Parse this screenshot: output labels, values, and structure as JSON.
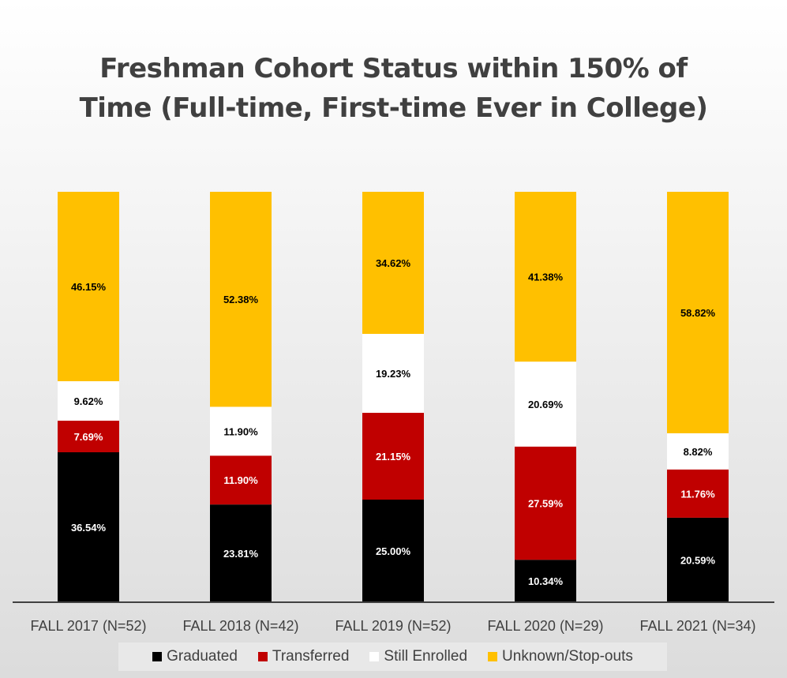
{
  "chart_data": {
    "type": "bar",
    "stacked": true,
    "percent_stacked": true,
    "title": "Freshman Cohort Status within 150% of Time (Full-time, First-time Ever in College)",
    "title_lines": [
      "Freshman Cohort Status within 150% of",
      "Time (Full-time, First-time Ever in College)"
    ],
    "categories": [
      "FALL 2017 (N=52)",
      "FALL 2018 (N=42)",
      "FALL 2019 (N=52)",
      "FALL 2020 (N=29)",
      "FALL 2021 (N=34)"
    ],
    "series": [
      {
        "name": "Graduated",
        "color": "#000000",
        "label_color": "#ffffff",
        "values": [
          36.54,
          23.81,
          25.0,
          10.34,
          20.59
        ],
        "labels": [
          "36.54%",
          "23.81%",
          "25.00%",
          "10.34%",
          "20.59%"
        ]
      },
      {
        "name": "Transferred",
        "color": "#c00000",
        "label_color": "#ffffff",
        "values": [
          7.69,
          11.9,
          21.15,
          27.59,
          11.76
        ],
        "labels": [
          "7.69%",
          "11.90%",
          "21.15%",
          "27.59%",
          "11.76%"
        ]
      },
      {
        "name": "Still Enrolled",
        "color": "#ffffff",
        "label_color": "#000000",
        "values": [
          9.62,
          11.9,
          19.23,
          20.69,
          8.82
        ],
        "labels": [
          "9.62%",
          "11.90%",
          "19.23%",
          "20.69%",
          "8.82%"
        ]
      },
      {
        "name": "Unknown/Stop-outs",
        "color": "#ffc000",
        "label_color": "#000000",
        "values": [
          46.15,
          52.38,
          34.62,
          41.38,
          58.82
        ],
        "labels": [
          "46.15%",
          "52.38%",
          "34.62%",
          "41.38%",
          "58.82%"
        ]
      }
    ],
    "ylim": [
      0,
      100
    ],
    "grid": false,
    "legend_position": "bottom"
  }
}
